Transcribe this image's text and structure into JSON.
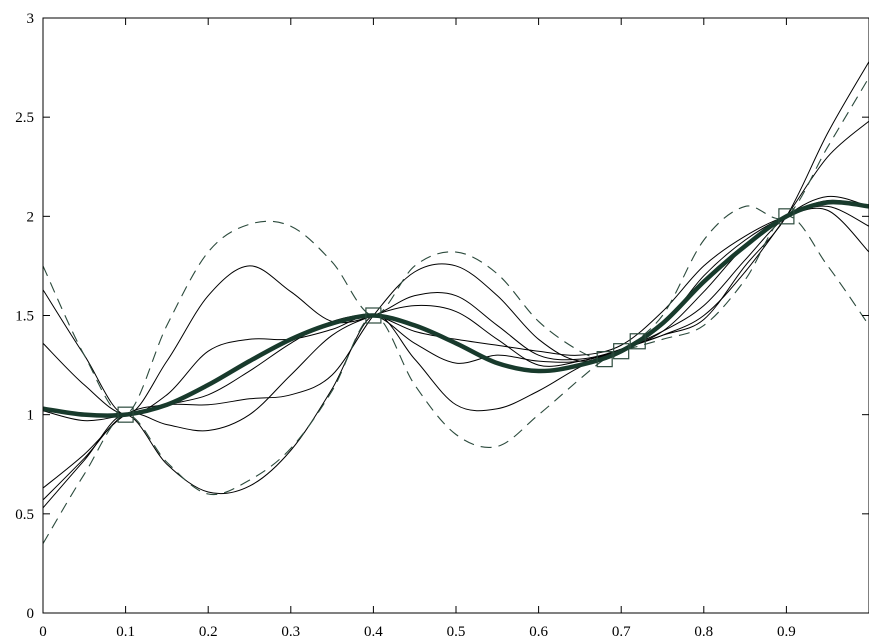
{
  "chart_data": {
    "type": "line",
    "title": "",
    "xlabel": "",
    "ylabel": "",
    "xlim": [
      0,
      1
    ],
    "ylim": [
      0,
      3
    ],
    "grid": false,
    "xticks": [
      0,
      0.1,
      0.2,
      0.3,
      0.4,
      0.5,
      0.6,
      0.7,
      0.8,
      0.9
    ],
    "xtick_labels": [
      "0",
      "0.1",
      "0.2",
      "0.3",
      "0.4",
      "0.5",
      "0.6",
      "0.7",
      "0.8",
      "0.9"
    ],
    "yticks": [
      0,
      0.5,
      1,
      1.5,
      2,
      2.5,
      3
    ],
    "ytick_labels": [
      "0",
      "0.5",
      "1",
      "1.5",
      "2",
      "2.5",
      "3"
    ],
    "observations": {
      "x": [
        0.1,
        0.4,
        0.68,
        0.7,
        0.72,
        0.9
      ],
      "y": [
        1.0,
        1.5,
        1.28,
        1.32,
        1.37,
        2.0
      ]
    },
    "mean": {
      "x": [
        0,
        0.05,
        0.1,
        0.15,
        0.2,
        0.25,
        0.3,
        0.35,
        0.4,
        0.45,
        0.5,
        0.55,
        0.6,
        0.65,
        0.7,
        0.75,
        0.8,
        0.85,
        0.9,
        0.95,
        1.0
      ],
      "y": [
        1.03,
        1.0,
        1.0,
        1.05,
        1.15,
        1.27,
        1.38,
        1.46,
        1.5,
        1.45,
        1.36,
        1.26,
        1.22,
        1.25,
        1.32,
        1.46,
        1.67,
        1.85,
        2.0,
        2.07,
        2.05
      ]
    },
    "confidence_band": {
      "x": [
        0,
        0.05,
        0.1,
        0.15,
        0.2,
        0.25,
        0.3,
        0.35,
        0.4,
        0.45,
        0.5,
        0.55,
        0.6,
        0.65,
        0.68,
        0.7,
        0.75,
        0.8,
        0.85,
        0.9,
        0.95,
        1.0
      ],
      "upper": [
        1.75,
        1.3,
        1.0,
        1.45,
        1.82,
        1.96,
        1.95,
        1.77,
        1.5,
        1.75,
        1.82,
        1.71,
        1.47,
        1.32,
        1.28,
        1.32,
        1.5,
        1.88,
        2.05,
        2.0,
        2.35,
        2.7
      ],
      "lower": [
        0.35,
        0.7,
        1.0,
        0.76,
        0.6,
        0.67,
        0.83,
        1.12,
        1.5,
        1.15,
        0.9,
        0.84,
        1.0,
        1.18,
        1.28,
        1.32,
        1.38,
        1.45,
        1.68,
        2.0,
        1.75,
        1.45
      ]
    },
    "samples": [
      {
        "x": [
          0,
          0.05,
          0.1,
          0.15,
          0.2,
          0.25,
          0.3,
          0.35,
          0.4,
          0.45,
          0.5,
          0.55,
          0.6,
          0.65,
          0.7,
          0.75,
          0.8,
          0.85,
          0.9,
          0.95,
          1.0
        ],
        "y": [
          1.63,
          1.3,
          1.0,
          1.27,
          1.6,
          1.75,
          1.62,
          1.47,
          1.5,
          1.6,
          1.6,
          1.45,
          1.3,
          1.28,
          1.33,
          1.42,
          1.62,
          1.85,
          2.0,
          2.08,
          2.05
        ]
      },
      {
        "x": [
          0,
          0.05,
          0.1,
          0.15,
          0.2,
          0.25,
          0.3,
          0.35,
          0.4,
          0.45,
          0.5,
          0.55,
          0.6,
          0.65,
          0.7,
          0.75,
          0.8,
          0.85,
          0.9,
          0.95,
          1.0
        ],
        "y": [
          1.36,
          1.15,
          1.0,
          1.1,
          1.32,
          1.38,
          1.38,
          1.43,
          1.5,
          1.36,
          1.26,
          1.3,
          1.27,
          1.27,
          1.33,
          1.45,
          1.7,
          1.88,
          2.0,
          2.05,
          1.95
        ]
      },
      {
        "x": [
          0,
          0.05,
          0.1,
          0.15,
          0.2,
          0.25,
          0.3,
          0.35,
          0.4,
          0.45,
          0.5,
          0.55,
          0.6,
          0.65,
          0.7,
          0.75,
          0.8,
          0.85,
          0.9,
          0.95,
          1.0
        ],
        "y": [
          1.02,
          0.97,
          1.0,
          1.05,
          1.1,
          1.22,
          1.36,
          1.47,
          1.5,
          1.42,
          1.38,
          1.35,
          1.32,
          1.3,
          1.35,
          1.52,
          1.75,
          1.9,
          2.0,
          2.03,
          1.82
        ]
      },
      {
        "x": [
          0,
          0.05,
          0.1,
          0.15,
          0.2,
          0.25,
          0.3,
          0.35,
          0.4,
          0.45,
          0.5,
          0.55,
          0.6,
          0.65,
          0.7,
          0.75,
          0.8,
          0.85,
          0.9,
          0.95,
          1.0
        ],
        "y": [
          0.63,
          0.8,
          1.0,
          1.05,
          1.05,
          1.08,
          1.1,
          1.2,
          1.5,
          1.72,
          1.75,
          1.6,
          1.38,
          1.27,
          1.33,
          1.4,
          1.5,
          1.72,
          2.0,
          2.3,
          2.48
        ]
      },
      {
        "x": [
          0,
          0.05,
          0.1,
          0.15,
          0.2,
          0.25,
          0.3,
          0.35,
          0.4,
          0.45,
          0.5,
          0.55,
          0.6,
          0.65,
          0.7,
          0.75,
          0.8,
          0.85,
          0.9,
          0.95,
          1.0
        ],
        "y": [
          0.57,
          0.78,
          1.0,
          0.95,
          0.92,
          1.0,
          1.2,
          1.4,
          1.5,
          1.55,
          1.52,
          1.38,
          1.25,
          1.27,
          1.33,
          1.42,
          1.55,
          1.78,
          2.0,
          2.1,
          2.05
        ]
      },
      {
        "x": [
          0,
          0.05,
          0.1,
          0.15,
          0.2,
          0.25,
          0.3,
          0.35,
          0.4,
          0.45,
          0.5,
          0.55,
          0.6,
          0.65,
          0.7,
          0.75,
          0.8,
          0.85,
          0.9,
          0.95,
          1.0
        ],
        "y": [
          0.53,
          0.77,
          1.0,
          0.75,
          0.61,
          0.64,
          0.82,
          1.13,
          1.5,
          1.28,
          1.05,
          1.03,
          1.12,
          1.24,
          1.33,
          1.4,
          1.48,
          1.75,
          2.0,
          2.42,
          2.78
        ]
      }
    ]
  },
  "colors": {
    "axis": "#000000",
    "samples": "#000000",
    "mean": "#183a2c",
    "band": "#2b4a3c",
    "markers": "#2b4a3c"
  }
}
